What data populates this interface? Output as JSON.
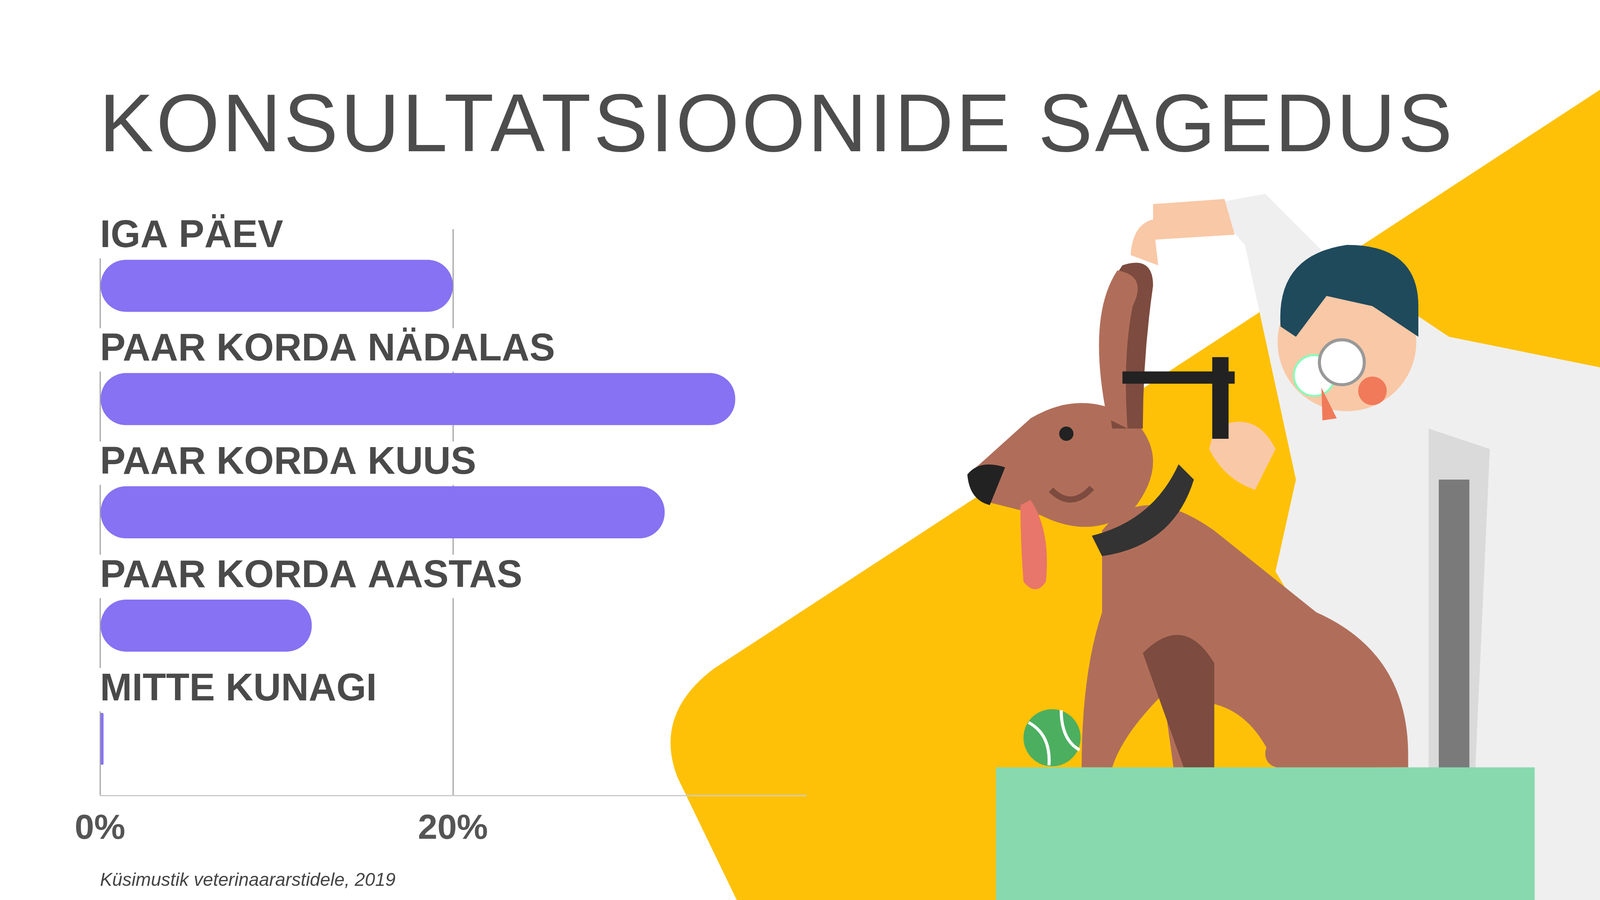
{
  "chart_data": {
    "type": "bar",
    "orientation": "horizontal",
    "title": "KONSULTATSIOONIDE SAGEDUS",
    "source": "Küsimustik veterinaararstidele, 2019",
    "categories": [
      "IGA PÄEV",
      "PAAR KORDA NÄDALAS",
      "PAAR KORDA KUUS",
      "PAAR KORDA AASTAS",
      "MITTE KUNAGI"
    ],
    "values": [
      20,
      36,
      32,
      12,
      0.2
    ],
    "color": "#8672F2",
    "xlim": [
      0,
      40
    ],
    "xticks": [
      {
        "value": 0,
        "label": "0%"
      },
      {
        "value": 20,
        "label": "20%"
      }
    ],
    "grid": true
  }
}
